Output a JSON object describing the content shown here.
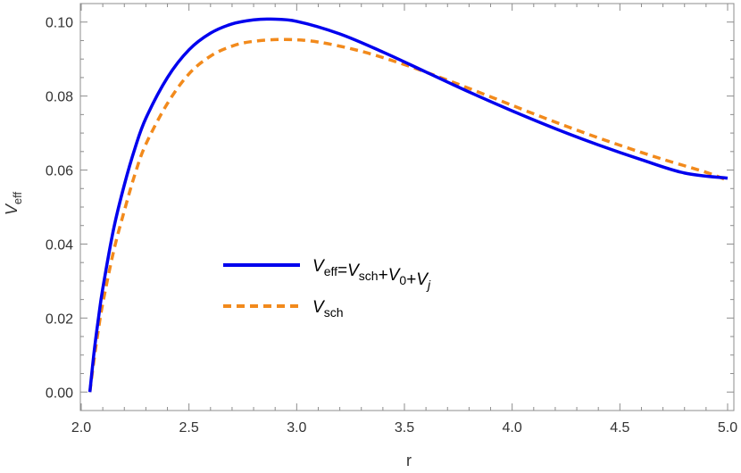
{
  "chart_data": {
    "type": "line",
    "xlabel": "r",
    "ylabel": {
      "main": "V",
      "sub": "eff"
    },
    "xlim": [
      2.0,
      5.0
    ],
    "ylim": [
      -0.005,
      0.105
    ],
    "xticks": [
      2.0,
      2.5,
      3.0,
      3.5,
      4.0,
      4.5,
      5.0
    ],
    "xtick_labels": [
      "2.0",
      "2.5",
      "3.0",
      "3.5",
      "4.0",
      "4.5",
      "5.0"
    ],
    "yticks": [
      0.0,
      0.02,
      0.04,
      0.06,
      0.08,
      0.1
    ],
    "ytick_labels": [
      "0.00",
      "0.02",
      "0.04",
      "0.06",
      "0.08",
      "0.10"
    ],
    "grid": false,
    "legend_position": "center",
    "series": [
      {
        "name": "V_eff=V_sch+V_0+V_j",
        "legend_label": [
          "V",
          "eff",
          "=",
          "V",
          "sch",
          "+",
          "V",
          "0",
          "+",
          "V",
          "j"
        ],
        "color": "#0000ee",
        "style": "solid",
        "x": [
          2.04,
          2.06,
          2.08,
          2.1,
          2.15,
          2.2,
          2.25,
          2.3,
          2.4,
          2.5,
          2.6,
          2.7,
          2.8,
          2.88,
          3.0,
          3.2,
          3.4,
          3.6,
          3.8,
          4.0,
          4.2,
          4.4,
          4.6,
          4.8,
          5.0
        ],
        "y": [
          0.0,
          0.011,
          0.02,
          0.028,
          0.044,
          0.056,
          0.066,
          0.074,
          0.085,
          0.0925,
          0.097,
          0.0995,
          0.1006,
          0.1008,
          0.1002,
          0.0968,
          0.0919,
          0.0865,
          0.0811,
          0.076,
          0.0712,
          0.0668,
          0.0628,
          0.0592,
          0.0578
        ]
      },
      {
        "name": "V_sch",
        "legend_label": [
          "V",
          "sch"
        ],
        "color": "#f28a1c",
        "style": "dashed",
        "x": [
          2.04,
          2.06,
          2.08,
          2.1,
          2.15,
          2.2,
          2.25,
          2.3,
          2.4,
          2.5,
          2.6,
          2.7,
          2.8,
          2.95,
          3.1,
          3.3,
          3.5,
          3.7,
          3.9,
          4.1,
          4.3,
          4.5,
          4.7,
          4.9,
          5.0
        ],
        "y": [
          0.0,
          0.009,
          0.017,
          0.024,
          0.038,
          0.049,
          0.059,
          0.067,
          0.078,
          0.086,
          0.0908,
          0.0935,
          0.0948,
          0.0953,
          0.0946,
          0.0921,
          0.0885,
          0.0843,
          0.0798,
          0.0752,
          0.0708,
          0.0667,
          0.0629,
          0.0594,
          0.0572
        ]
      }
    ]
  }
}
